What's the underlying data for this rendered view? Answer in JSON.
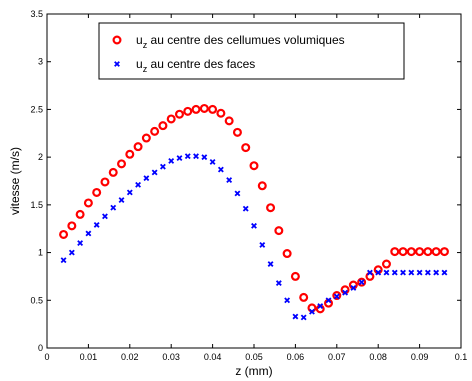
{
  "chart_data": {
    "type": "scatter",
    "xlabel": "z (mm)",
    "ylabel": "vitesse (m/s)",
    "xlim": [
      0,
      0.1
    ],
    "ylim": [
      0,
      3.5
    ],
    "xticks": [
      "0",
      "0.01",
      "0.02",
      "0.03",
      "0.04",
      "0.05",
      "0.06",
      "0.07",
      "0.08",
      "0.09",
      "0.1"
    ],
    "yticks": [
      "0",
      "0.5",
      "1",
      "1.5",
      "2",
      "2.5",
      "3",
      "3.5"
    ],
    "grid": false,
    "legend_position": "top-center",
    "series": [
      {
        "name_main": "u",
        "name_sub": "z",
        "name_rest": " au centre des cellumues volumiques",
        "marker": "circle",
        "color": "#ff0000",
        "x": [
          0.004,
          0.006,
          0.008,
          0.01,
          0.012,
          0.014,
          0.016,
          0.018,
          0.02,
          0.022,
          0.024,
          0.026,
          0.028,
          0.03,
          0.032,
          0.034,
          0.036,
          0.038,
          0.04,
          0.042,
          0.044,
          0.046,
          0.048,
          0.05,
          0.052,
          0.054,
          0.056,
          0.058,
          0.06,
          0.062,
          0.064,
          0.066,
          0.068,
          0.07,
          0.072,
          0.074,
          0.076,
          0.078,
          0.08,
          0.082,
          0.084,
          0.086,
          0.088,
          0.09,
          0.092,
          0.094,
          0.096
        ],
        "y": [
          1.19,
          1.28,
          1.4,
          1.52,
          1.63,
          1.74,
          1.84,
          1.93,
          2.03,
          2.11,
          2.2,
          2.27,
          2.33,
          2.4,
          2.45,
          2.48,
          2.5,
          2.51,
          2.5,
          2.46,
          2.38,
          2.26,
          2.1,
          1.91,
          1.7,
          1.47,
          1.23,
          0.99,
          0.75,
          0.53,
          0.42,
          0.41,
          0.47,
          0.55,
          0.61,
          0.66,
          0.69,
          0.75,
          0.82,
          0.88,
          1.01,
          1.01,
          1.01,
          1.01,
          1.01,
          1.01,
          1.01
        ]
      },
      {
        "name_main": "u",
        "name_sub": "z",
        "name_rest": " au centre des faces",
        "marker": "x",
        "color": "#0000ff",
        "x": [
          0.004,
          0.006,
          0.008,
          0.01,
          0.012,
          0.014,
          0.016,
          0.018,
          0.02,
          0.022,
          0.024,
          0.026,
          0.028,
          0.03,
          0.032,
          0.034,
          0.036,
          0.038,
          0.04,
          0.042,
          0.044,
          0.046,
          0.048,
          0.05,
          0.052,
          0.054,
          0.056,
          0.058,
          0.06,
          0.062,
          0.064,
          0.066,
          0.068,
          0.07,
          0.072,
          0.074,
          0.076,
          0.078,
          0.08,
          0.082,
          0.084,
          0.086,
          0.088,
          0.09,
          0.092,
          0.094,
          0.096
        ],
        "y": [
          0.92,
          1.0,
          1.1,
          1.2,
          1.29,
          1.38,
          1.47,
          1.55,
          1.63,
          1.71,
          1.78,
          1.84,
          1.9,
          1.96,
          1.99,
          2.01,
          2.01,
          2.0,
          1.95,
          1.87,
          1.76,
          1.62,
          1.46,
          1.28,
          1.08,
          0.88,
          0.68,
          0.5,
          0.33,
          0.32,
          0.38,
          0.44,
          0.5,
          0.54,
          0.58,
          0.63,
          0.69,
          0.79,
          0.79,
          0.79,
          0.79,
          0.79,
          0.79,
          0.79,
          0.79,
          0.79,
          0.79
        ]
      }
    ]
  }
}
